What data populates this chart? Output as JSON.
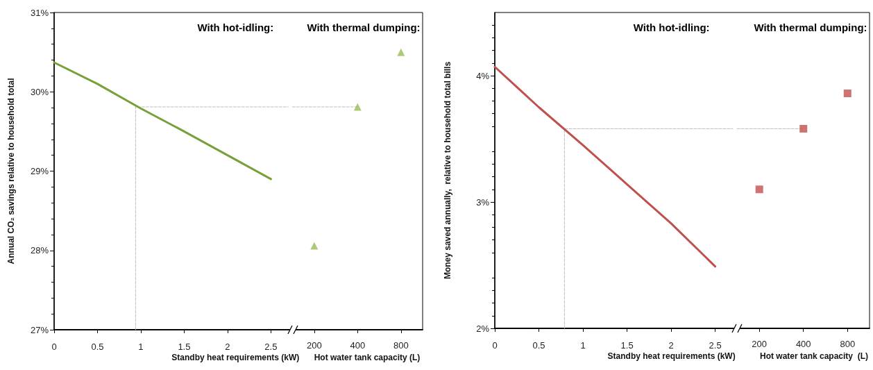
{
  "chart_data": [
    {
      "type": "line",
      "ylabel": "Annual CO₂ savings relative to household total",
      "xlabel": "Standby heat requirements (kW)",
      "x2label": "Hot water tank capacity (L)",
      "annotations": [
        "With hot-idling:",
        "With thermal dumping:"
      ],
      "xlim": [
        0,
        4.25
      ],
      "xticks": [
        0,
        0.5,
        1,
        1.5,
        2,
        2.5
      ],
      "x2lim": [
        3.125,
        1131
      ],
      "x2ticks": [
        200,
        400,
        800
      ],
      "log": "x2",
      "ylim": [
        27,
        31
      ],
      "yticks": [
        {
          "value": 27,
          "label": "27%"
        },
        {
          "value": 28,
          "label": "28%"
        },
        {
          "value": 29,
          "label": "29%"
        },
        {
          "value": 30,
          "label": "30%"
        },
        {
          "value": 31,
          "label": "31%"
        }
      ],
      "grid": false,
      "series": [
        {
          "type": "line",
          "color": "#bfbfbf",
          "line_style": "dashed",
          "marker": "none",
          "x": [
            0.94,
            0.94,
            2.7
          ],
          "values": [
            27,
            29.81,
            29.81
          ]
        },
        {
          "type": "line",
          "color": "#bfbfbf",
          "line_style": "dashed",
          "marker": "none",
          "axis": "x2",
          "x": [
            141,
            400
          ],
          "values": [
            29.81,
            29.81
          ]
        },
        {
          "color": "#77a03a",
          "marker": "none",
          "line_style": "solid",
          "x": [
            0,
            0.5,
            1,
            1.5,
            2,
            2.5
          ],
          "values": [
            30.37,
            30.1,
            29.79,
            29.5,
            29.2,
            28.9
          ]
        },
        {
          "type": "scatter",
          "color": "#9bbb59",
          "marker": "triangle",
          "axis": "x2",
          "x": [
            200,
            400,
            800
          ],
          "values": [
            28.06,
            29.81,
            30.5
          ]
        }
      ]
    },
    {
      "type": "line",
      "ylabel": "Money saved annually,  relative to household total bills",
      "xlabel": "Standby heat requirements (kW)",
      "x2label": "Hot water tank capacity  (L)",
      "annotations": [
        "With hot-idling:",
        "With thermal dumping:"
      ],
      "xlim": [
        0,
        4.25
      ],
      "xticks": [
        0,
        0.5,
        1,
        1.5,
        2,
        2.5
      ],
      "x2lim": [
        3.125,
        1131
      ],
      "x2ticks": [
        200,
        400,
        800
      ],
      "log": "x2",
      "ylim": [
        2,
        4.5
      ],
      "yticks": [
        {
          "value": 2,
          "label": "2%"
        },
        {
          "value": 3,
          "label": "3%"
        },
        {
          "value": 4,
          "label": "4%"
        }
      ],
      "grid": false,
      "series": [
        {
          "type": "line",
          "color": "#bfbfbf",
          "line_style": "dashed",
          "marker": "none",
          "x": [
            0.79,
            0.79,
            2.7
          ],
          "values": [
            2,
            3.58,
            3.58
          ]
        },
        {
          "type": "line",
          "color": "#bfbfbf",
          "line_style": "dashed",
          "marker": "none",
          "axis": "x2",
          "x": [
            141,
            400
          ],
          "values": [
            3.58,
            3.58
          ]
        },
        {
          "color": "#c0504d",
          "marker": "none",
          "line_style": "solid",
          "x": [
            0,
            0.25,
            0.5,
            1,
            1.5,
            2,
            2.5
          ],
          "values": [
            4.07,
            3.91,
            3.75,
            3.45,
            3.14,
            2.83,
            2.49
          ]
        },
        {
          "type": "scatter",
          "color": "#c0504d",
          "marker": "square",
          "axis": "x2",
          "x": [
            200,
            400,
            800
          ],
          "values": [
            3.1,
            3.58,
            3.86
          ]
        }
      ]
    }
  ]
}
